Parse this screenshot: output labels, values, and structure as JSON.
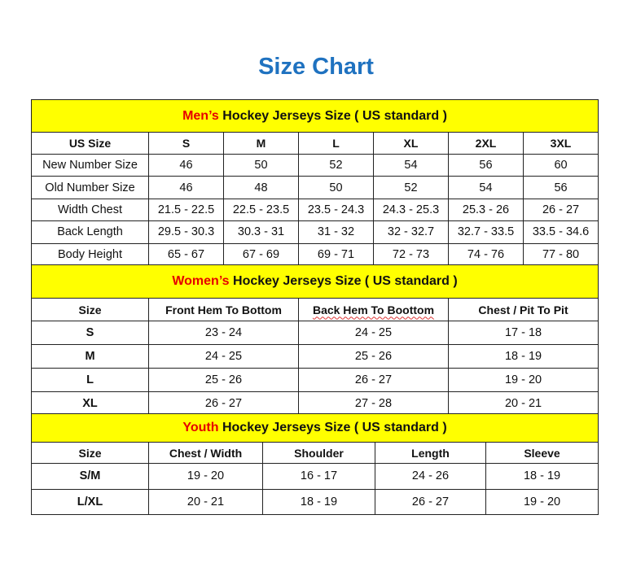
{
  "title": "Size Chart",
  "colors": {
    "title": "#1f72c0",
    "section_bg": "#ffff00",
    "highlight": "#e60000"
  },
  "men": {
    "highlight": "Men’s",
    "heading": " Hockey Jerseys Size ( US standard )",
    "columns": [
      "US Size",
      "S",
      "M",
      "L",
      "XL",
      "2XL",
      "3XL"
    ],
    "rows": [
      [
        "New Number Size",
        "46",
        "50",
        "52",
        "54",
        "56",
        "60"
      ],
      [
        "Old Number Size",
        "46",
        "48",
        "50",
        "52",
        "54",
        "56"
      ],
      [
        "Width Chest",
        "21.5 - 22.5",
        "22.5 - 23.5",
        "23.5 - 24.3",
        "24.3 - 25.3",
        "25.3 - 26",
        "26 - 27"
      ],
      [
        "Back Length",
        "29.5 - 30.3",
        "30.3 - 31",
        "31 - 32",
        "32 - 32.7",
        "32.7 - 33.5",
        "33.5 - 34.6"
      ],
      [
        "Body Height",
        "65 - 67",
        "67 - 69",
        "69 - 71",
        "72 - 73",
        "74 - 76",
        "77 - 80"
      ]
    ]
  },
  "women": {
    "highlight": "Women’s",
    "heading": " Hockey Jerseys Size ( US standard )",
    "columns": [
      "Size",
      "Front Hem To Bottom",
      "Back Hem To Boottom",
      "Chest / Pit To Pit"
    ],
    "rows": [
      [
        "S",
        "23 - 24",
        "24 - 25",
        "17 - 18"
      ],
      [
        "M",
        "24 - 25",
        "25 - 26",
        "18 - 19"
      ],
      [
        "L",
        "25 - 26",
        "26 - 27",
        "19 - 20"
      ],
      [
        "XL",
        "26 - 27",
        "27 - 28",
        "20 - 21"
      ]
    ]
  },
  "youth": {
    "highlight": "Youth",
    "heading": " Hockey Jerseys Size ( US standard )",
    "columns": [
      "Size",
      "Chest / Width",
      "Shoulder",
      "Length",
      "Sleeve"
    ],
    "rows": [
      [
        "S/M",
        "19 - 20",
        "16 - 17",
        "24 - 26",
        "18 - 19"
      ],
      [
        "L/XL",
        "20 - 21",
        "18 - 19",
        "26 - 27",
        "19 - 20"
      ]
    ]
  }
}
